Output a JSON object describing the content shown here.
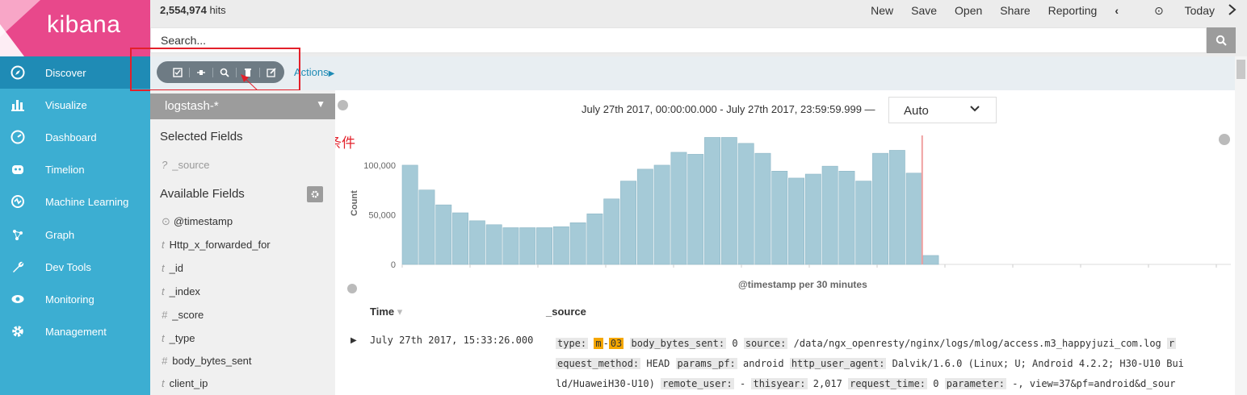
{
  "app": {
    "name": "kibana"
  },
  "topbar": {
    "hits_count": "2,554,974",
    "hits_suffix": " hits",
    "menu": [
      "New",
      "Save",
      "Open",
      "Share",
      "Reporting"
    ],
    "nav_prev": "‹",
    "time_label": "Today"
  },
  "search": {
    "placeholder": "Search..."
  },
  "sidebar": {
    "items": [
      {
        "label": "Discover",
        "icon": "compass-icon"
      },
      {
        "label": "Visualize",
        "icon": "bar-chart-icon"
      },
      {
        "label": "Dashboard",
        "icon": "dashboard-icon"
      },
      {
        "label": "Timelion",
        "icon": "timelion-icon"
      },
      {
        "label": "Machine Learning",
        "icon": "machine-learning-icon"
      },
      {
        "label": "Graph",
        "icon": "graph-icon"
      },
      {
        "label": "Dev Tools",
        "icon": "wrench-icon"
      },
      {
        "label": "Monitoring",
        "icon": "eye-icon"
      },
      {
        "label": "Management",
        "icon": "gear-icon"
      }
    ],
    "active": "Discover"
  },
  "filterbar": {
    "actions_label": "Actions",
    "annotation": "移除过滤条件"
  },
  "fields_panel": {
    "index_pattern": "logstash-*",
    "selected_heading": "Selected Fields",
    "selected": [
      {
        "type": "?",
        "name": "_source"
      }
    ],
    "available_heading": "Available Fields",
    "available": [
      {
        "type": "clock",
        "name": "@timestamp"
      },
      {
        "type": "t",
        "name": "Http_x_forwarded_for"
      },
      {
        "type": "t",
        "name": "_id"
      },
      {
        "type": "t",
        "name": "_index"
      },
      {
        "type": "#",
        "name": "_score"
      },
      {
        "type": "t",
        "name": "_type"
      },
      {
        "type": "#",
        "name": "body_bytes_sent"
      },
      {
        "type": "t",
        "name": "client_ip"
      }
    ]
  },
  "time_range": {
    "text": "July 27th 2017, 00:00:00.000 - July 27th 2017, 23:59:59.999 —",
    "interval": "Auto"
  },
  "chart_data": {
    "type": "bar",
    "ylabel": "Count",
    "xlabel": "@timestamp per 30 minutes",
    "ylim": [
      0,
      130000
    ],
    "yticks": [
      "100,000",
      "50,000",
      "0"
    ],
    "values": [
      100000,
      75000,
      60000,
      52000,
      44000,
      40000,
      37000,
      37000,
      37000,
      38000,
      42000,
      51000,
      66000,
      84000,
      96000,
      100000,
      113000,
      111000,
      128000,
      128000,
      122000,
      112000,
      94000,
      87000,
      91000,
      99000,
      94000,
      84000,
      112000,
      115000,
      92000,
      9000
    ],
    "color": "#a5cad7",
    "marker_color": "#f0a0a0"
  },
  "table": {
    "col_time": "Time",
    "col_source": "_source",
    "rows": [
      {
        "time": "July 27th 2017, 15:33:26.000",
        "source": [
          {
            "k": "type:",
            "v": ""
          },
          {
            "hl1": "m"
          },
          {
            "sep": "-"
          },
          {
            "hl2": "03"
          },
          {
            "k2": "body_bytes_sent:",
            "v2": "0"
          },
          {
            "k3": "source:",
            "v3": "/data/ngx_openresty/nginx/logs/mlog/access.m3_happyjuzi_com.log"
          }
        ]
      }
    ]
  }
}
